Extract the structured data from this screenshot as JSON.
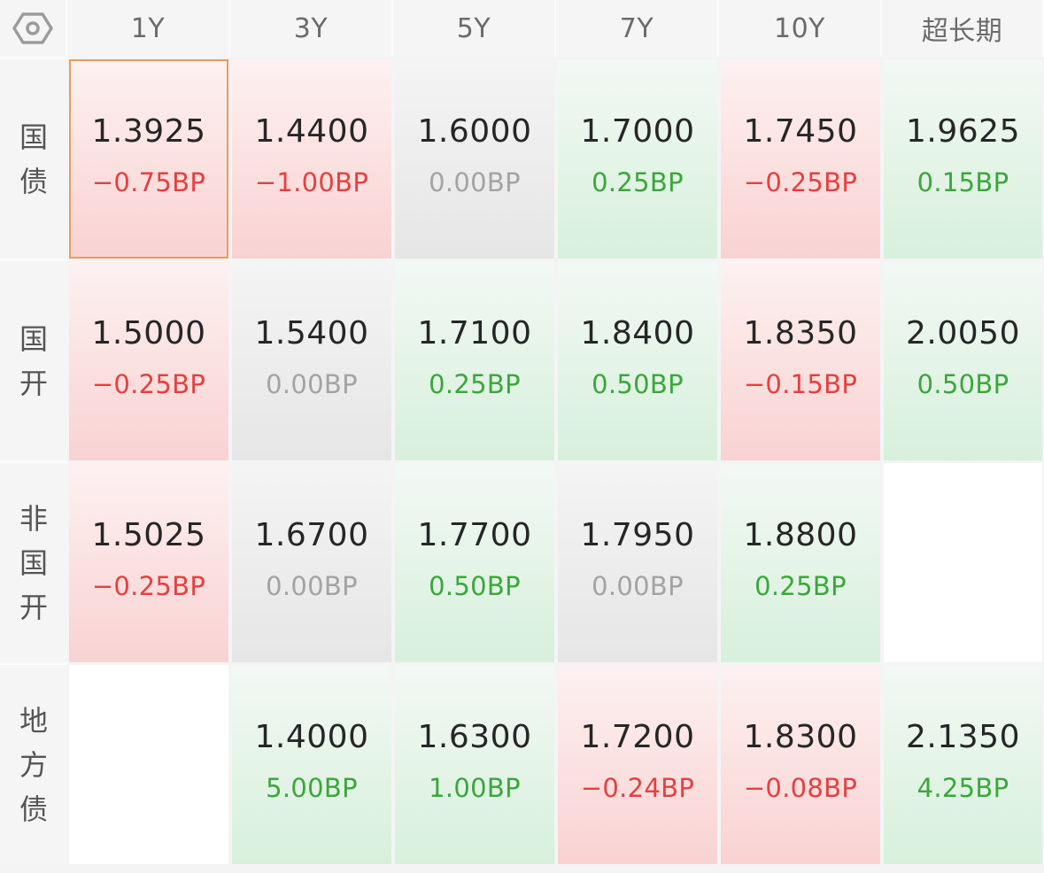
{
  "header": {
    "settings_icon": "hexagon-settings-icon",
    "columns": [
      "1Y",
      "3Y",
      "5Y",
      "7Y",
      "10Y",
      "超长期"
    ]
  },
  "rows": [
    {
      "label": "国债",
      "cells": [
        {
          "yield": "1.3925",
          "change": "−0.75BP",
          "trend": "up",
          "selected": true
        },
        {
          "yield": "1.4400",
          "change": "−1.00BP",
          "trend": "up"
        },
        {
          "yield": "1.6000",
          "change": "0.00BP",
          "trend": "flat"
        },
        {
          "yield": "1.7000",
          "change": "0.25BP",
          "trend": "down"
        },
        {
          "yield": "1.7450",
          "change": "−0.25BP",
          "trend": "up"
        },
        {
          "yield": "1.9625",
          "change": "0.15BP",
          "trend": "down"
        }
      ]
    },
    {
      "label": "国开",
      "cells": [
        {
          "yield": "1.5000",
          "change": "−0.25BP",
          "trend": "up"
        },
        {
          "yield": "1.5400",
          "change": "0.00BP",
          "trend": "flat"
        },
        {
          "yield": "1.7100",
          "change": "0.25BP",
          "trend": "down"
        },
        {
          "yield": "1.8400",
          "change": "0.50BP",
          "trend": "down"
        },
        {
          "yield": "1.8350",
          "change": "−0.15BP",
          "trend": "up"
        },
        {
          "yield": "2.0050",
          "change": "0.50BP",
          "trend": "down"
        }
      ]
    },
    {
      "label": "非国开",
      "cells": [
        {
          "yield": "1.5025",
          "change": "−0.25BP",
          "trend": "up"
        },
        {
          "yield": "1.6700",
          "change": "0.00BP",
          "trend": "flat"
        },
        {
          "yield": "1.7700",
          "change": "0.50BP",
          "trend": "down"
        },
        {
          "yield": "1.7950",
          "change": "0.00BP",
          "trend": "flat"
        },
        {
          "yield": "1.8800",
          "change": "0.25BP",
          "trend": "down"
        },
        null
      ]
    },
    {
      "label": "地方债",
      "cells": [
        null,
        {
          "yield": "1.4000",
          "change": "5.00BP",
          "trend": "down"
        },
        {
          "yield": "1.6300",
          "change": "1.00BP",
          "trend": "down"
        },
        {
          "yield": "1.7200",
          "change": "−0.24BP",
          "trend": "up"
        },
        {
          "yield": "1.8300",
          "change": "−0.08BP",
          "trend": "up"
        },
        {
          "yield": "2.1350",
          "change": "4.25BP",
          "trend": "down"
        }
      ]
    }
  ],
  "colors": {
    "up_text": "#e5403f",
    "down_text": "#3aa73a",
    "flat_text": "#a3a3a3",
    "selected_border": "#ee9a5c"
  }
}
